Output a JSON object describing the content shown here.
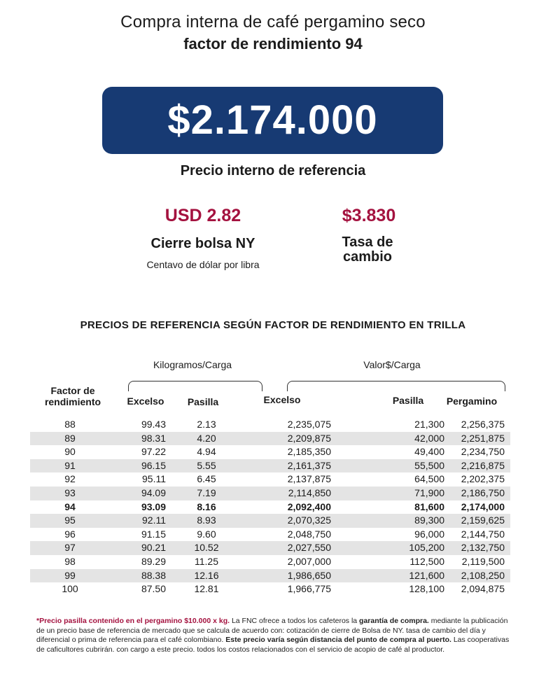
{
  "title_line1": "Compra interna de café pergamino seco",
  "title_line2": "factor de rendimiento 94",
  "main_price": "$2.174.000",
  "main_price_label": "Precio interno de referencia",
  "ny_value": "USD 2.82",
  "ny_label": "Cierre bolsa NY",
  "ny_sublabel": "Centavo de dólar por libra",
  "rate_value": "$3.830",
  "rate_label_line1": "Tasa de",
  "rate_label_line2": "cambio",
  "table_title": "PRECIOS DE REFERENCIA SEGÚN FACTOR DE RENDIMIENTO EN TRILLA",
  "group_kg": "Kilogramos/Carga",
  "group_valor": "Valor$/Carga",
  "headers": {
    "factor": "Factor de rendimiento",
    "excelso_kg": "Excelso",
    "pasilla_kg": "Pasilla",
    "excelso_val": "Excelso",
    "pasilla_val": "Pasilla",
    "pergamino": "Pergamino"
  },
  "rows": [
    [
      "88",
      "99.43",
      "2.13",
      "2,235,075",
      "21,300",
      "2,256,375"
    ],
    [
      "89",
      "98.31",
      "4.20",
      "2,209,875",
      "42,000",
      "2,251,875"
    ],
    [
      "90",
      "97.22",
      "4.94",
      "2,185,350",
      "49,400",
      "2,234,750"
    ],
    [
      "91",
      "96.15",
      "5.55",
      "2,161,375",
      "55,500",
      "2,216,875"
    ],
    [
      "92",
      "95.11",
      "6.45",
      "2,137,875",
      "64,500",
      "2,202,375"
    ],
    [
      "93",
      "94.09",
      "7.19",
      "2,114,850",
      "71,900",
      "2,186,750"
    ],
    [
      "94",
      "93.09",
      "8.16",
      "2,092,400",
      "81,600",
      "2,174,000"
    ],
    [
      "95",
      "92.11",
      "8.93",
      "2,070,325",
      "89,300",
      "2,159,625"
    ],
    [
      "96",
      "91.15",
      "9.60",
      "2,048,750",
      "96,000",
      "2,144,750"
    ],
    [
      "97",
      "90.21",
      "10.52",
      "2,027,550",
      "105,200",
      "2,132,750"
    ],
    [
      "98",
      "89.29",
      "11.25",
      "2,007,000",
      "112,500",
      "2,119,500"
    ],
    [
      "99",
      "88.38",
      "12.16",
      "1,986,650",
      "121,600",
      "2,108,250"
    ],
    [
      "100",
      "87.50",
      "12.81",
      "1,966,775",
      "128,100",
      "2,094,875"
    ]
  ],
  "highlight_row": "94",
  "footnote": {
    "red": "*Precio pasilla contenido en el pergamino $10.000 x kg.",
    "t1": " La FNC ofrece a todos los cafeteros la ",
    "b1": "garantía de compra.",
    "t2": " mediante la publicación de un precio base de referencia de mercado que se calcula de acuerdo con: cotización de cierre de Bolsa de NY. tasa de cambio del día y diferencial o prima de referencia para el café colombiano. ",
    "b2": "Este precio varía según distancia del punto de compra al puerto.",
    "t3": " Las cooperativas de caficultores cubrirán. con cargo a este precio. todos los costos relacionados con el servicio de acopio de café al productor."
  }
}
